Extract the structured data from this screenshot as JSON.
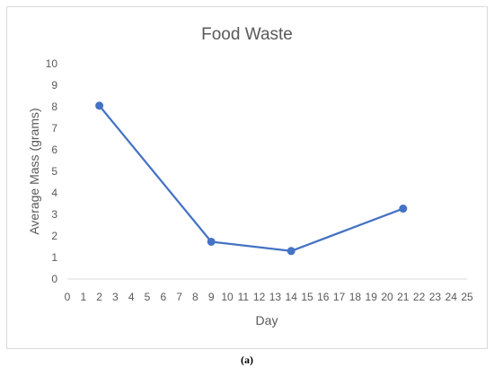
{
  "caption": "(a)",
  "chart_data": {
    "type": "line",
    "title": "Food Waste",
    "xlabel": "Day",
    "ylabel": "Average Mass (grams)",
    "xlim": [
      0,
      25
    ],
    "ylim": [
      0,
      10
    ],
    "x_ticks": [
      0,
      1,
      2,
      3,
      4,
      5,
      6,
      7,
      8,
      9,
      10,
      11,
      12,
      13,
      14,
      15,
      16,
      17,
      18,
      19,
      20,
      21,
      22,
      23,
      24,
      25
    ],
    "y_ticks": [
      0,
      1,
      2,
      3,
      4,
      5,
      6,
      7,
      8,
      9,
      10
    ],
    "grid": false,
    "series": [
      {
        "x": [
          2,
          9,
          14,
          21
        ],
        "y": [
          8.05,
          1.73,
          1.3,
          3.27
        ]
      }
    ],
    "colors": {
      "series": "#4472c4",
      "axis": "#d9d9d9",
      "text": "#595959"
    }
  }
}
